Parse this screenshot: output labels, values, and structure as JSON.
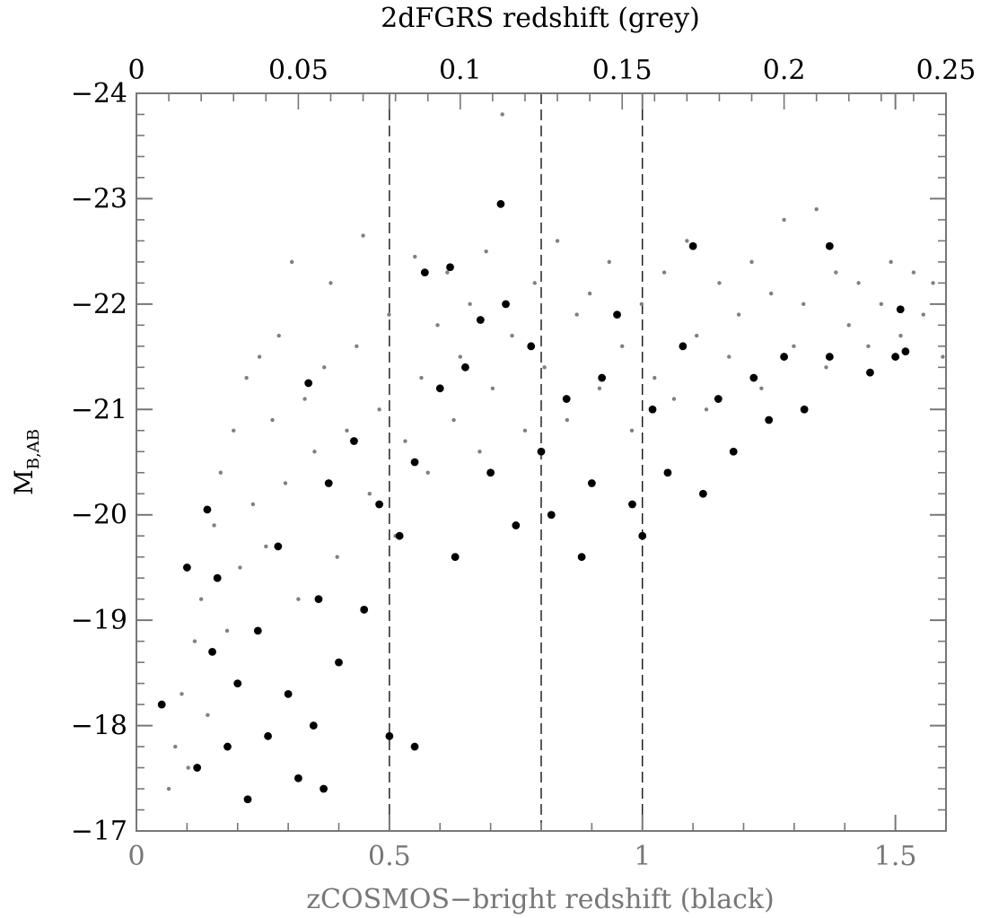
{
  "chart_data": {
    "type": "scatter",
    "xlabel": "zCOSMOS−bright redshift (black)",
    "x2label": "2dFGRS redshift (grey)",
    "ylabel_main": "M",
    "ylabel_sub": "B,AB",
    "xlim": [
      0,
      1.6
    ],
    "x2lim": [
      0,
      0.25
    ],
    "ylim": [
      -17,
      -24
    ],
    "x_ticks": [
      0,
      0.5,
      1,
      1.5
    ],
    "x_tick_labels": [
      "0",
      "0.5",
      "1",
      "1.5"
    ],
    "x2_ticks": [
      0,
      0.05,
      0.1,
      0.15,
      0.2,
      0.25
    ],
    "x2_tick_labels": [
      "0",
      "0.05",
      "0.1",
      "0.15",
      "0.2",
      "0.25"
    ],
    "y_ticks": [
      -24,
      -23,
      -22,
      -21,
      -20,
      -19,
      -18,
      -17
    ],
    "y_tick_labels": [
      "−24",
      "−23",
      "−22",
      "−21",
      "−20",
      "−19",
      "−18",
      "−17"
    ],
    "vlines_x": [
      0.5,
      0.8,
      1.0
    ],
    "colors": {
      "grey_series": "#808080",
      "black_series": "#000000",
      "axis": "#777777"
    },
    "series": [
      {
        "color": "grey",
        "axis": "top",
        "points": [
          [
            0.01,
            -17.4
          ],
          [
            0.012,
            -17.8
          ],
          [
            0.014,
            -18.3
          ],
          [
            0.016,
            -17.6
          ],
          [
            0.018,
            -18.8
          ],
          [
            0.02,
            -19.2
          ],
          [
            0.022,
            -18.1
          ],
          [
            0.024,
            -19.9
          ],
          [
            0.026,
            -20.4
          ],
          [
            0.028,
            -18.9
          ],
          [
            0.03,
            -20.8
          ],
          [
            0.032,
            -19.5
          ],
          [
            0.034,
            -21.3
          ],
          [
            0.036,
            -20.1
          ],
          [
            0.038,
            -21.5
          ],
          [
            0.04,
            -19.7
          ],
          [
            0.042,
            -20.9
          ],
          [
            0.044,
            -21.7
          ],
          [
            0.046,
            -20.3
          ],
          [
            0.048,
            -22.4
          ],
          [
            0.05,
            -19.2
          ],
          [
            0.052,
            -21.1
          ],
          [
            0.055,
            -20.6
          ],
          [
            0.058,
            -21.4
          ],
          [
            0.06,
            -22.2
          ],
          [
            0.062,
            -19.6
          ],
          [
            0.065,
            -20.8
          ],
          [
            0.068,
            -21.6
          ],
          [
            0.07,
            -22.65
          ],
          [
            0.072,
            -20.2
          ],
          [
            0.075,
            -21.0
          ],
          [
            0.078,
            -21.9
          ],
          [
            0.08,
            -19.8
          ],
          [
            0.083,
            -20.7
          ],
          [
            0.086,
            -22.45
          ],
          [
            0.088,
            -21.3
          ],
          [
            0.09,
            -20.4
          ],
          [
            0.093,
            -21.8
          ],
          [
            0.096,
            -22.3
          ],
          [
            0.098,
            -20.9
          ],
          [
            0.1,
            -21.5
          ],
          [
            0.103,
            -22.0
          ],
          [
            0.106,
            -20.6
          ],
          [
            0.108,
            -22.5
          ],
          [
            0.11,
            -21.2
          ],
          [
            0.113,
            -23.8
          ],
          [
            0.116,
            -21.7
          ],
          [
            0.12,
            -20.8
          ],
          [
            0.123,
            -22.2
          ],
          [
            0.126,
            -21.4
          ],
          [
            0.13,
            -22.6
          ],
          [
            0.133,
            -20.9
          ],
          [
            0.136,
            -21.9
          ],
          [
            0.14,
            -22.1
          ],
          [
            0.143,
            -21.2
          ],
          [
            0.146,
            -22.4
          ],
          [
            0.15,
            -21.6
          ],
          [
            0.153,
            -20.8
          ],
          [
            0.156,
            -22.0
          ],
          [
            0.16,
            -21.3
          ],
          [
            0.163,
            -22.3
          ],
          [
            0.166,
            -21.1
          ],
          [
            0.17,
            -22.6
          ],
          [
            0.173,
            -21.7
          ],
          [
            0.176,
            -21.0
          ],
          [
            0.18,
            -22.2
          ],
          [
            0.183,
            -21.5
          ],
          [
            0.186,
            -21.9
          ],
          [
            0.19,
            -22.4
          ],
          [
            0.193,
            -21.2
          ],
          [
            0.196,
            -22.1
          ],
          [
            0.2,
            -22.8
          ],
          [
            0.203,
            -21.6
          ],
          [
            0.206,
            -22.0
          ],
          [
            0.21,
            -22.9
          ],
          [
            0.213,
            -21.4
          ],
          [
            0.216,
            -22.3
          ],
          [
            0.22,
            -21.8
          ],
          [
            0.223,
            -22.2
          ],
          [
            0.226,
            -21.6
          ],
          [
            0.23,
            -22.0
          ],
          [
            0.233,
            -22.4
          ],
          [
            0.236,
            -21.7
          ],
          [
            0.24,
            -22.3
          ],
          [
            0.243,
            -21.9
          ],
          [
            0.246,
            -22.2
          ],
          [
            0.249,
            -21.5
          ]
        ]
      },
      {
        "color": "black",
        "axis": "bottom",
        "points": [
          [
            0.05,
            -18.2
          ],
          [
            0.1,
            -19.5
          ],
          [
            0.12,
            -17.6
          ],
          [
            0.14,
            -20.05
          ],
          [
            0.15,
            -18.7
          ],
          [
            0.16,
            -19.4
          ],
          [
            0.18,
            -17.8
          ],
          [
            0.2,
            -18.4
          ],
          [
            0.22,
            -17.3
          ],
          [
            0.24,
            -18.9
          ],
          [
            0.26,
            -17.9
          ],
          [
            0.28,
            -19.7
          ],
          [
            0.3,
            -18.3
          ],
          [
            0.32,
            -17.5
          ],
          [
            0.34,
            -21.25
          ],
          [
            0.35,
            -18.0
          ],
          [
            0.36,
            -19.2
          ],
          [
            0.37,
            -17.4
          ],
          [
            0.38,
            -20.3
          ],
          [
            0.4,
            -18.6
          ],
          [
            0.43,
            -20.7
          ],
          [
            0.45,
            -19.1
          ],
          [
            0.48,
            -20.1
          ],
          [
            0.5,
            -17.9
          ],
          [
            0.52,
            -19.8
          ],
          [
            0.55,
            -20.5
          ],
          [
            0.55,
            -17.8
          ],
          [
            0.57,
            -22.3
          ],
          [
            0.6,
            -21.2
          ],
          [
            0.62,
            -22.35
          ],
          [
            0.63,
            -19.6
          ],
          [
            0.65,
            -21.4
          ],
          [
            0.68,
            -21.85
          ],
          [
            0.7,
            -20.4
          ],
          [
            0.72,
            -22.95
          ],
          [
            0.73,
            -22.0
          ],
          [
            0.75,
            -19.9
          ],
          [
            0.78,
            -21.6
          ],
          [
            0.8,
            -20.6
          ],
          [
            0.82,
            -20.0
          ],
          [
            0.85,
            -21.1
          ],
          [
            0.88,
            -19.6
          ],
          [
            0.9,
            -20.3
          ],
          [
            0.92,
            -21.3
          ],
          [
            0.95,
            -21.9
          ],
          [
            0.98,
            -20.1
          ],
          [
            1.0,
            -19.8
          ],
          [
            1.02,
            -21.0
          ],
          [
            1.05,
            -20.4
          ],
          [
            1.08,
            -21.6
          ],
          [
            1.1,
            -22.55
          ],
          [
            1.12,
            -20.2
          ],
          [
            1.15,
            -21.1
          ],
          [
            1.18,
            -20.6
          ],
          [
            1.22,
            -21.3
          ],
          [
            1.25,
            -20.9
          ],
          [
            1.28,
            -21.5
          ],
          [
            1.32,
            -21.0
          ],
          [
            1.37,
            -22.55
          ],
          [
            1.37,
            -21.5
          ],
          [
            1.45,
            -21.35
          ],
          [
            1.5,
            -21.5
          ],
          [
            1.51,
            -21.95
          ],
          [
            1.52,
            -21.55
          ]
        ]
      }
    ]
  }
}
